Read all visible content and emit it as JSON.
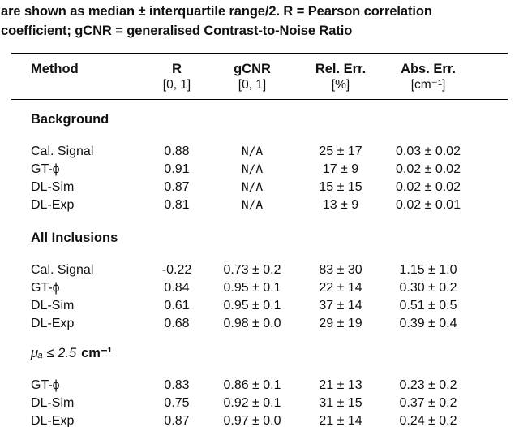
{
  "caption": {
    "line1": "are shown as median ± interquartile range/2. R = Pearson correlation",
    "line2": "coefficient; gCNR = generalised Contrast-to-Noise Ratio"
  },
  "table": {
    "headers": [
      [
        "Method",
        ""
      ],
      [
        "R",
        "[0, 1]"
      ],
      [
        "gCNR",
        "[0, 1]"
      ],
      [
        "Rel. Err.",
        "[%]"
      ],
      [
        "Abs. Err.",
        "[cm⁻¹]"
      ]
    ],
    "sections": [
      {
        "title": "Background",
        "rows": [
          [
            "Cal. Signal",
            "0.88",
            "N/A",
            "25 ± 17",
            "0.03 ± 0.02"
          ],
          [
            "GT-ϕ",
            "0.91",
            "N/A",
            "17 ± 9",
            "0.02 ± 0.02"
          ],
          [
            "DL-Sim",
            "0.87",
            "N/A",
            "15 ± 15",
            "0.02 ± 0.02"
          ],
          [
            "DL-Exp",
            "0.81",
            "N/A",
            "13 ± 9",
            "0.02 ± 0.01"
          ]
        ]
      },
      {
        "title": "All Inclusions",
        "rows": [
          [
            "Cal. Signal",
            "-0.22",
            "0.73 ± 0.2",
            "83 ± 30",
            "1.15 ± 1.0"
          ],
          [
            "GT-ϕ",
            "0.84",
            "0.95 ± 0.1",
            "22 ± 14",
            "0.30 ± 0.2"
          ],
          [
            "DL-Sim",
            "0.61",
            "0.95 ± 0.1",
            "37 ± 14",
            "0.51 ± 0.5"
          ],
          [
            "DL-Exp",
            "0.68",
            "0.98 ± 0.0",
            "29 ± 19",
            "0.39 ± 0.4"
          ]
        ]
      },
      {
        "title_math": "μₐ ≤ 2.5",
        "title_unit": "cm⁻¹",
        "rows": [
          [
            "GT-ϕ",
            "0.83",
            "0.86 ± 0.1",
            "21 ± 13",
            "0.23 ± 0.2"
          ],
          [
            "DL-Sim",
            "0.75",
            "0.92 ± 0.1",
            "31 ± 15",
            "0.37 ± 0.2"
          ],
          [
            "DL-Exp",
            "0.87",
            "0.97 ± 0.0",
            "21 ± 14",
            "0.24 ± 0.2"
          ]
        ]
      }
    ]
  }
}
